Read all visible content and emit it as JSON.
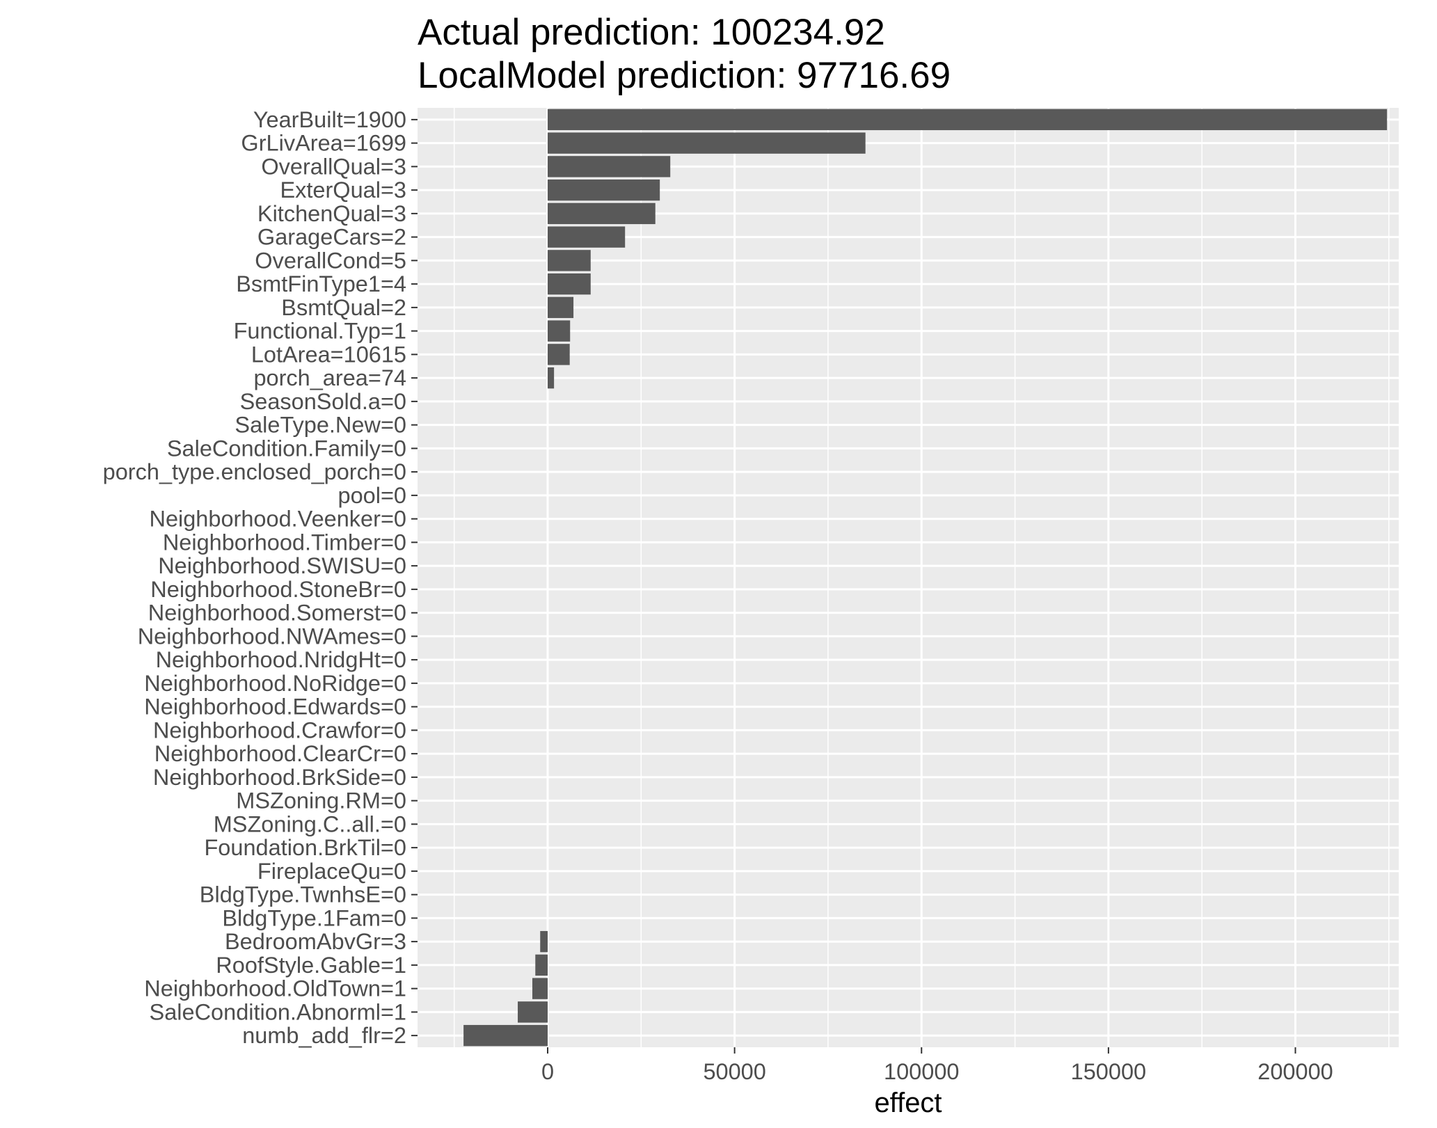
{
  "chart_data": {
    "type": "bar",
    "orientation": "horizontal",
    "title_lines": [
      "Actual prediction: 100234.92",
      "LocalModel prediction: 97716.69"
    ],
    "xlabel": "effect",
    "ylabel": "",
    "xlim": [
      -32000,
      240000
    ],
    "x_ticks": [
      0,
      50000,
      100000,
      150000,
      200000
    ],
    "x_tick_labels": [
      "0",
      "50000",
      "100000",
      "150000",
      "200000"
    ],
    "grid": true,
    "legend": "none",
    "colors": {
      "bar": "#595959",
      "panel": "#ebebeb",
      "grid": "#ffffff",
      "text": "#4d4d4d"
    },
    "categories": [
      "YearBuilt=1900",
      "GrLivArea=1699",
      "OverallQual=3",
      "ExterQual=3",
      "KitchenQual=3",
      "GarageCars=2",
      "OverallCond=5",
      "BsmtFinType1=4",
      "BsmtQual=2",
      "Functional.Typ=1",
      "LotArea=10615",
      "porch_area=74",
      "SeasonSold.a=0",
      "SaleType.New=0",
      "SaleCondition.Family=0",
      "porch_type.enclosed_porch=0",
      "pool=0",
      "Neighborhood.Veenker=0",
      "Neighborhood.Timber=0",
      "Neighborhood.SWISU=0",
      "Neighborhood.StoneBr=0",
      "Neighborhood.Somerst=0",
      "Neighborhood.NWAmes=0",
      "Neighborhood.NridgHt=0",
      "Neighborhood.NoRidge=0",
      "Neighborhood.Edwards=0",
      "Neighborhood.Crawfor=0",
      "Neighborhood.ClearCr=0",
      "Neighborhood.BrkSide=0",
      "MSZoning.RM=0",
      "MSZoning.C..all.=0",
      "Foundation.BrkTil=0",
      "FireplaceQu=0",
      "BldgType.TwnhsE=0",
      "BldgType.1Fam=0",
      "BedroomAbvGr=3",
      "RoofStyle.Gable=1",
      "Neighborhood.OldTown=1",
      "SaleCondition.Abnorml=1",
      "numb_add_flr=2"
    ],
    "values": [
      224500,
      85000,
      32800,
      30000,
      28800,
      20700,
      11500,
      11500,
      6900,
      6000,
      5900,
      1700,
      0,
      0,
      0,
      0,
      0,
      0,
      0,
      0,
      0,
      0,
      0,
      0,
      0,
      0,
      0,
      0,
      0,
      0,
      0,
      0,
      0,
      0,
      0,
      -2000,
      -3300,
      -4100,
      -8000,
      -22500
    ]
  }
}
